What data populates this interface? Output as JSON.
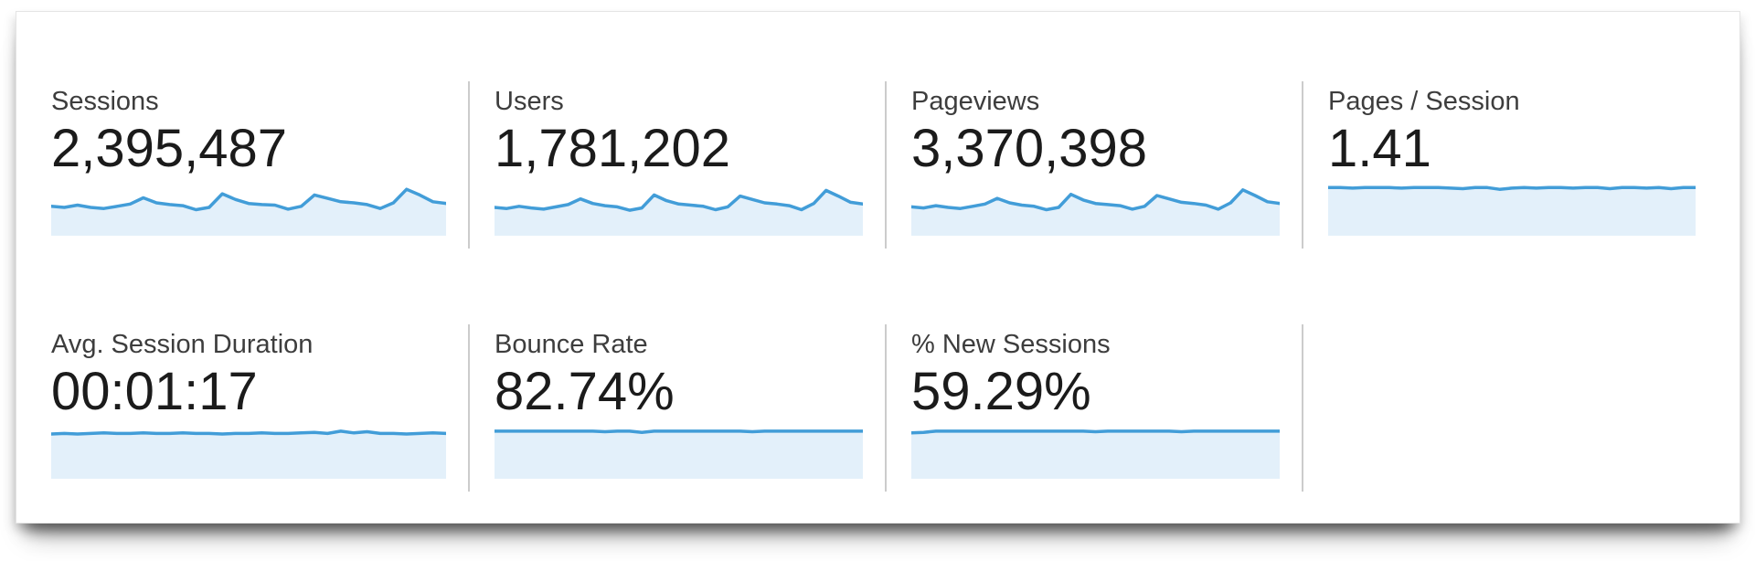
{
  "colors": {
    "spark_line": "#429dd8",
    "spark_fill": "#e3f0fa",
    "divider": "#cccccc",
    "label_text": "#3d3d3d",
    "value_text": "#1b1b1b",
    "card_bg": "#ffffff"
  },
  "metrics": {
    "row1": [
      {
        "id": "sessions",
        "label": "Sessions",
        "value": "2,395,487",
        "sparkline": [
          0.52,
          0.5,
          0.54,
          0.5,
          0.48,
          0.52,
          0.56,
          0.67,
          0.58,
          0.55,
          0.53,
          0.46,
          0.5,
          0.74,
          0.64,
          0.57,
          0.55,
          0.54,
          0.47,
          0.52,
          0.72,
          0.66,
          0.6,
          0.58,
          0.55,
          0.48,
          0.58,
          0.82,
          0.72,
          0.6,
          0.57
        ]
      },
      {
        "id": "users",
        "label": "Users",
        "value": "1,781,202",
        "sparkline": [
          0.5,
          0.48,
          0.52,
          0.49,
          0.47,
          0.51,
          0.55,
          0.65,
          0.57,
          0.53,
          0.51,
          0.45,
          0.49,
          0.72,
          0.62,
          0.56,
          0.54,
          0.52,
          0.46,
          0.51,
          0.7,
          0.64,
          0.58,
          0.56,
          0.53,
          0.46,
          0.57,
          0.8,
          0.7,
          0.59,
          0.56
        ]
      },
      {
        "id": "pageviews",
        "label": "Pageviews",
        "value": "3,370,398",
        "sparkline": [
          0.51,
          0.49,
          0.53,
          0.5,
          0.48,
          0.52,
          0.56,
          0.66,
          0.58,
          0.54,
          0.52,
          0.46,
          0.5,
          0.73,
          0.63,
          0.57,
          0.55,
          0.53,
          0.47,
          0.52,
          0.71,
          0.65,
          0.59,
          0.57,
          0.54,
          0.47,
          0.58,
          0.81,
          0.71,
          0.6,
          0.57
        ]
      },
      {
        "id": "pages-per-session",
        "label": "Pages / Session",
        "value": "1.41",
        "sparkline": [
          0.85,
          0.85,
          0.84,
          0.85,
          0.85,
          0.85,
          0.84,
          0.85,
          0.85,
          0.85,
          0.84,
          0.83,
          0.85,
          0.85,
          0.82,
          0.84,
          0.85,
          0.84,
          0.85,
          0.85,
          0.84,
          0.85,
          0.85,
          0.83,
          0.85,
          0.85,
          0.84,
          0.85,
          0.83,
          0.85,
          0.85
        ]
      }
    ],
    "row2": [
      {
        "id": "avg-session-duration",
        "label": "Avg. Session Duration",
        "value": "00:01:17",
        "sparkline": [
          0.79,
          0.8,
          0.79,
          0.8,
          0.81,
          0.8,
          0.8,
          0.81,
          0.8,
          0.8,
          0.81,
          0.8,
          0.8,
          0.79,
          0.8,
          0.8,
          0.81,
          0.8,
          0.8,
          0.81,
          0.82,
          0.8,
          0.84,
          0.81,
          0.83,
          0.8,
          0.8,
          0.79,
          0.8,
          0.81,
          0.8
        ]
      },
      {
        "id": "bounce-rate",
        "label": "Bounce Rate",
        "value": "82.74%",
        "sparkline": [
          0.84,
          0.84,
          0.84,
          0.84,
          0.84,
          0.84,
          0.84,
          0.84,
          0.84,
          0.83,
          0.84,
          0.84,
          0.82,
          0.84,
          0.84,
          0.84,
          0.84,
          0.84,
          0.84,
          0.84,
          0.84,
          0.83,
          0.84,
          0.84,
          0.84,
          0.84,
          0.84,
          0.84,
          0.84,
          0.84,
          0.84
        ]
      },
      {
        "id": "new-sessions",
        "label": "% New Sessions",
        "value": "59.29%",
        "sparkline": [
          0.81,
          0.82,
          0.84,
          0.84,
          0.84,
          0.84,
          0.84,
          0.84,
          0.84,
          0.84,
          0.84,
          0.84,
          0.84,
          0.84,
          0.84,
          0.83,
          0.84,
          0.84,
          0.84,
          0.84,
          0.84,
          0.84,
          0.83,
          0.84,
          0.84,
          0.84,
          0.84,
          0.84,
          0.84,
          0.84,
          0.84
        ]
      }
    ]
  },
  "chart_data": [
    {
      "type": "area",
      "title": "Sessions",
      "headline_value": "2,395,487",
      "x": "time (daily, axis unlabeled)",
      "values_normalized": [
        0.52,
        0.5,
        0.54,
        0.5,
        0.48,
        0.52,
        0.56,
        0.67,
        0.58,
        0.55,
        0.53,
        0.46,
        0.5,
        0.74,
        0.64,
        0.57,
        0.55,
        0.54,
        0.47,
        0.52,
        0.72,
        0.66,
        0.6,
        0.58,
        0.55,
        0.48,
        0.58,
        0.82,
        0.72,
        0.6,
        0.57
      ],
      "legend": "none",
      "grid": false,
      "axes_visible": false
    },
    {
      "type": "area",
      "title": "Users",
      "headline_value": "1,781,202",
      "x": "time (daily, axis unlabeled)",
      "values_normalized": [
        0.5,
        0.48,
        0.52,
        0.49,
        0.47,
        0.51,
        0.55,
        0.65,
        0.57,
        0.53,
        0.51,
        0.45,
        0.49,
        0.72,
        0.62,
        0.56,
        0.54,
        0.52,
        0.46,
        0.51,
        0.7,
        0.64,
        0.58,
        0.56,
        0.53,
        0.46,
        0.57,
        0.8,
        0.7,
        0.59,
        0.56
      ],
      "legend": "none",
      "grid": false,
      "axes_visible": false
    },
    {
      "type": "area",
      "title": "Pageviews",
      "headline_value": "3,370,398",
      "x": "time (daily, axis unlabeled)",
      "values_normalized": [
        0.51,
        0.49,
        0.53,
        0.5,
        0.48,
        0.52,
        0.56,
        0.66,
        0.58,
        0.54,
        0.52,
        0.46,
        0.5,
        0.73,
        0.63,
        0.57,
        0.55,
        0.53,
        0.47,
        0.52,
        0.71,
        0.65,
        0.59,
        0.57,
        0.54,
        0.47,
        0.58,
        0.81,
        0.71,
        0.6,
        0.57
      ],
      "legend": "none",
      "grid": false,
      "axes_visible": false
    },
    {
      "type": "area",
      "title": "Pages / Session",
      "headline_value": "1.41",
      "x": "time (daily, axis unlabeled)",
      "values_normalized": [
        0.85,
        0.85,
        0.84,
        0.85,
        0.85,
        0.85,
        0.84,
        0.85,
        0.85,
        0.85,
        0.84,
        0.83,
        0.85,
        0.85,
        0.82,
        0.84,
        0.85,
        0.84,
        0.85,
        0.85,
        0.84,
        0.85,
        0.85,
        0.83,
        0.85,
        0.85,
        0.84,
        0.85,
        0.83,
        0.85,
        0.85
      ],
      "legend": "none",
      "grid": false,
      "axes_visible": false
    },
    {
      "type": "area",
      "title": "Avg. Session Duration",
      "headline_value": "00:01:17",
      "x": "time (daily, axis unlabeled)",
      "values_normalized": [
        0.79,
        0.8,
        0.79,
        0.8,
        0.81,
        0.8,
        0.8,
        0.81,
        0.8,
        0.8,
        0.81,
        0.8,
        0.8,
        0.79,
        0.8,
        0.8,
        0.81,
        0.8,
        0.8,
        0.81,
        0.82,
        0.8,
        0.84,
        0.81,
        0.83,
        0.8,
        0.8,
        0.79,
        0.8,
        0.81,
        0.8
      ],
      "legend": "none",
      "grid": false,
      "axes_visible": false
    },
    {
      "type": "area",
      "title": "Bounce Rate",
      "headline_value": "82.74%",
      "x": "time (daily, axis unlabeled)",
      "values_normalized": [
        0.84,
        0.84,
        0.84,
        0.84,
        0.84,
        0.84,
        0.84,
        0.84,
        0.84,
        0.83,
        0.84,
        0.84,
        0.82,
        0.84,
        0.84,
        0.84,
        0.84,
        0.84,
        0.84,
        0.84,
        0.84,
        0.83,
        0.84,
        0.84,
        0.84,
        0.84,
        0.84,
        0.84,
        0.84,
        0.84,
        0.84
      ],
      "legend": "none",
      "grid": false,
      "axes_visible": false
    },
    {
      "type": "area",
      "title": "% New Sessions",
      "headline_value": "59.29%",
      "x": "time (daily, axis unlabeled)",
      "values_normalized": [
        0.81,
        0.82,
        0.84,
        0.84,
        0.84,
        0.84,
        0.84,
        0.84,
        0.84,
        0.84,
        0.84,
        0.84,
        0.84,
        0.84,
        0.84,
        0.83,
        0.84,
        0.84,
        0.84,
        0.84,
        0.84,
        0.84,
        0.83,
        0.84,
        0.84,
        0.84,
        0.84,
        0.84,
        0.84,
        0.84,
        0.84
      ],
      "legend": "none",
      "grid": false,
      "axes_visible": false
    }
  ]
}
